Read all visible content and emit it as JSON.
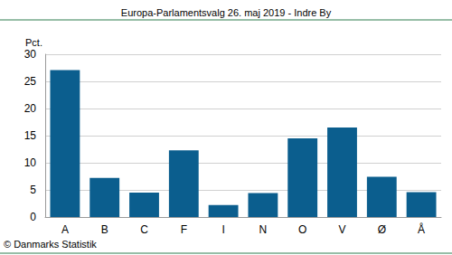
{
  "chart_data": {
    "type": "bar",
    "title": "Europa-Parlamentsvalg 26. maj 2019 - Indre By",
    "ylabel": "Pct.",
    "source": "© Danmarks Statistik",
    "categories": [
      "A",
      "B",
      "C",
      "F",
      "I",
      "N",
      "O",
      "V",
      "Ø",
      "Å"
    ],
    "values": [
      27.1,
      7.2,
      4.5,
      12.3,
      2.2,
      4.4,
      14.5,
      16.5,
      7.4,
      4.6
    ],
    "color": "#0b5e8e",
    "ylim": [
      0,
      30
    ],
    "yticks": [
      0,
      5,
      10,
      15,
      20,
      25,
      30
    ],
    "grid": true
  }
}
